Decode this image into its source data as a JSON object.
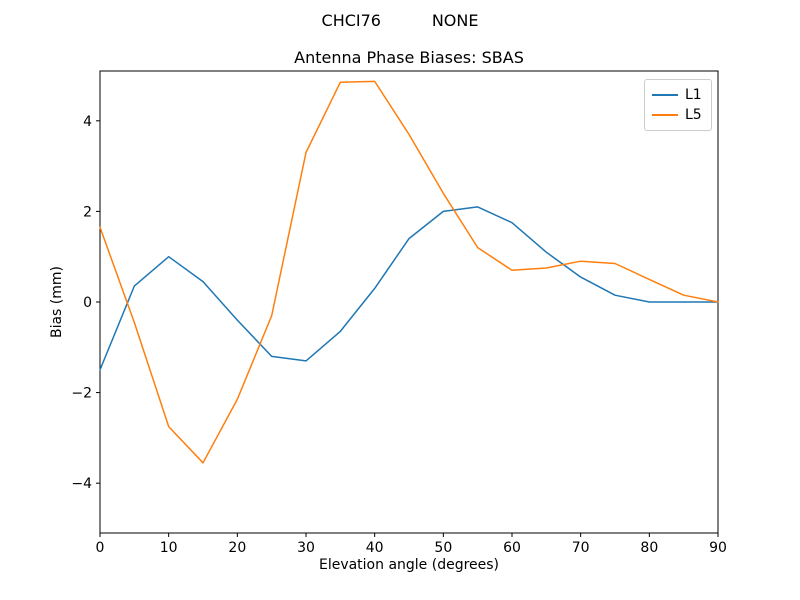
{
  "figure": {
    "suptitle": "CHCI76          NONE"
  },
  "chart_data": {
    "type": "line",
    "title": "Antenna Phase Biases: SBAS",
    "xlabel": "Elevation angle (degrees)",
    "ylabel": "Bias (mm)",
    "xlim": [
      0,
      90
    ],
    "ylim": [
      -5.1,
      5.1
    ],
    "xticks": [
      0,
      10,
      20,
      30,
      40,
      50,
      60,
      70,
      80,
      90
    ],
    "yticks": [
      -4,
      -2,
      0,
      2,
      4
    ],
    "grid": false,
    "legend_position": "upper right",
    "background_color": "#ffffff",
    "x": [
      0,
      5,
      10,
      15,
      20,
      25,
      30,
      35,
      40,
      45,
      50,
      55,
      60,
      65,
      70,
      75,
      80,
      85,
      90
    ],
    "series": [
      {
        "name": "L1",
        "color": "#1f77b4",
        "values": [
          -1.5,
          0.35,
          1.0,
          0.45,
          -0.4,
          -1.2,
          -1.3,
          -0.65,
          0.3,
          1.4,
          2.0,
          2.1,
          1.75,
          1.1,
          0.55,
          0.15,
          0.0,
          0.0,
          0.0
        ]
      },
      {
        "name": "L5",
        "color": "#ff7f0e",
        "values": [
          1.65,
          -0.45,
          -2.75,
          -3.55,
          -2.15,
          -0.3,
          3.3,
          4.85,
          4.87,
          3.7,
          2.4,
          1.2,
          0.7,
          0.75,
          0.9,
          0.85,
          0.5,
          0.15,
          0.0
        ]
      }
    ]
  }
}
